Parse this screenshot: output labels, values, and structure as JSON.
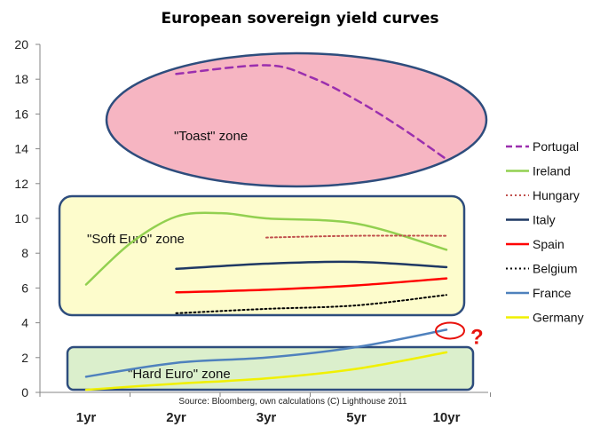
{
  "chart_data": {
    "type": "line",
    "title": "European sovereign yield curves",
    "categories": [
      "1yr",
      "2yr",
      "3yr",
      "5yr",
      "10yr"
    ],
    "ylim": [
      0,
      20
    ],
    "yticks": [
      "0",
      "2",
      "4",
      "6",
      "8",
      "10",
      "12",
      "14",
      "16",
      "18",
      "20"
    ],
    "grid": false,
    "legend_position": "right",
    "series": [
      {
        "name": "Portugal",
        "color": "#9b2fae",
        "dash": "dashed",
        "points": [
          [
            2,
            18.3
          ],
          [
            3,
            18.8
          ],
          [
            3.5,
            18.1
          ],
          [
            4,
            16.8
          ],
          [
            4.5,
            15.2
          ],
          [
            5,
            13.4
          ]
        ]
      },
      {
        "name": "Ireland",
        "color": "#92d050",
        "dash": "solid",
        "points": [
          [
            1,
            6.2
          ],
          [
            1.5,
            8.6
          ],
          [
            2,
            10.1
          ],
          [
            2.5,
            10.3
          ],
          [
            3,
            10.0
          ],
          [
            4,
            9.7
          ],
          [
            5,
            8.2
          ]
        ]
      },
      {
        "name": "Hungary",
        "color": "#c0504d",
        "dash": "dotted",
        "points": [
          [
            3,
            8.9
          ],
          [
            4,
            9.0
          ],
          [
            5,
            9.0
          ]
        ]
      },
      {
        "name": "Italy",
        "color": "#1f3864",
        "dash": "solid",
        "points": [
          [
            2,
            7.1
          ],
          [
            3,
            7.4
          ],
          [
            4,
            7.5
          ],
          [
            5,
            7.2
          ]
        ]
      },
      {
        "name": "Spain",
        "color": "#ff0000",
        "dash": "solid",
        "points": [
          [
            2,
            5.75
          ],
          [
            3,
            5.9
          ],
          [
            4,
            6.15
          ],
          [
            5,
            6.55
          ]
        ]
      },
      {
        "name": "Belgium",
        "color": "#000000",
        "dash": "dotted",
        "points": [
          [
            2,
            4.55
          ],
          [
            3,
            4.8
          ],
          [
            4,
            5.0
          ],
          [
            5,
            5.6
          ]
        ]
      },
      {
        "name": "France",
        "color": "#4f81bd",
        "dash": "solid",
        "points": [
          [
            1,
            0.9
          ],
          [
            2,
            1.7
          ],
          [
            3,
            2.0
          ],
          [
            4,
            2.6
          ],
          [
            5,
            3.6
          ]
        ]
      },
      {
        "name": "Germany",
        "color": "#f0f000",
        "dash": "solid",
        "points": [
          [
            1,
            0.15
          ],
          [
            2,
            0.5
          ],
          [
            3,
            0.8
          ],
          [
            4,
            1.35
          ],
          [
            5,
            2.3
          ]
        ]
      }
    ],
    "annotations": {
      "zones": [
        {
          "label": "\"Toast\" zone",
          "fill": "#f6b5c2",
          "stroke": "#2e4d7d"
        },
        {
          "label": "\"Soft Euro\" zone",
          "fill": "#fdfccc",
          "stroke": "#2e4d7d"
        },
        {
          "label": "\"Hard Euro\" zone",
          "fill": "#dbefcc",
          "stroke": "#2e4d7d"
        }
      ],
      "question_mark": "?",
      "source": "Source: Bloomberg,  own calculations (C) Lighthouse  2011"
    }
  }
}
